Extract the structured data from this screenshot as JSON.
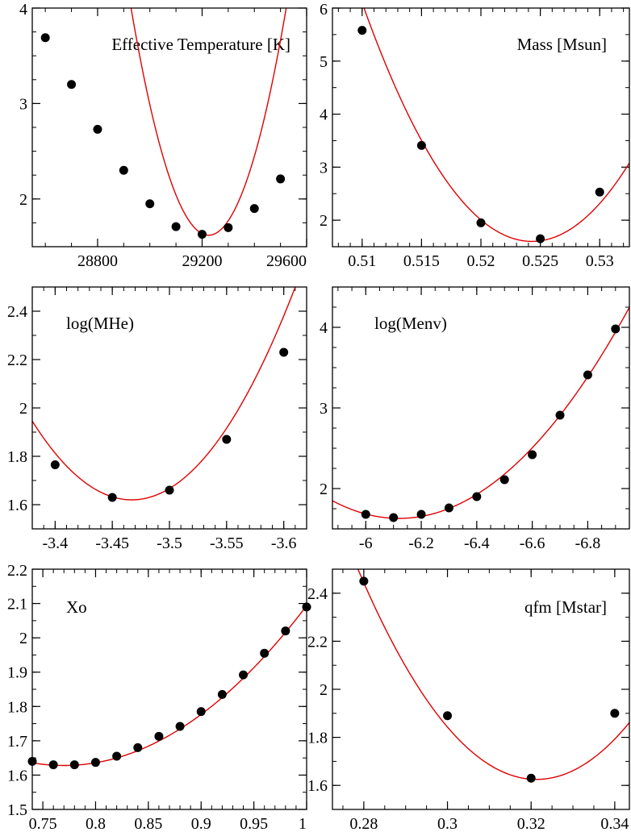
{
  "chart_data": [
    {
      "type": "scatter",
      "title": "Effective Temperature [K]",
      "xlim": [
        28550,
        29600
      ],
      "ylim": [
        1.5,
        4
      ],
      "xticks": [
        28800,
        29200,
        29600
      ],
      "xtick_labels": [
        "28800",
        "29200",
        "29600"
      ],
      "xminor": 100,
      "yticks": [
        2,
        3,
        4
      ],
      "ytick_labels": [
        "2",
        "3",
        "4"
      ],
      "yminor": 0.25,
      "x": [
        28600,
        28700,
        28800,
        28900,
        29000,
        29100,
        29200,
        29300,
        29400,
        29500
      ],
      "y": [
        3.69,
        3.2,
        2.73,
        2.3,
        1.95,
        1.71,
        1.63,
        1.7,
        1.9,
        2.21
      ],
      "fit": {
        "x0": 29225,
        "y0": 1.62,
        "a": 2.7e-05
      }
    },
    {
      "type": "scatter",
      "title": "Mass [Msun]",
      "xlim": [
        0.5075,
        0.5325
      ],
      "ylim": [
        1.5,
        6
      ],
      "xticks": [
        0.51,
        0.515,
        0.52,
        0.525,
        0.53
      ],
      "xtick_labels": [
        "0.51",
        "0.515",
        "0.52",
        "0.525",
        "0.53"
      ],
      "xminor": 0.001,
      "yticks": [
        2,
        3,
        4,
        5,
        6
      ],
      "ytick_labels": [
        "2",
        "3",
        "4",
        "5",
        "6"
      ],
      "yminor": 0.5,
      "x": [
        0.51,
        0.515,
        0.52,
        0.525,
        0.53
      ],
      "y": [
        5.58,
        3.41,
        1.95,
        1.65,
        2.53
      ],
      "fit": {
        "x0": 0.5243,
        "y0": 1.6,
        "a": 22000
      }
    },
    {
      "type": "scatter",
      "title": "log(MHe)",
      "xlim": [
        -3.38,
        -3.62
      ],
      "ylim": [
        1.5,
        2.5
      ],
      "xticks": [
        -3.4,
        -3.45,
        -3.5,
        -3.55,
        -3.6
      ],
      "xtick_labels": [
        "-3.4",
        "-3.45",
        "-3.5",
        "-3.55",
        "-3.6"
      ],
      "xminor": 0.01,
      "yticks": [
        1.6,
        1.8,
        2,
        2.2,
        2.4
      ],
      "ytick_labels": [
        "1.6",
        "1.8",
        "2",
        "2.2",
        "2.4"
      ],
      "yminor": 0.1,
      "x": [
        -3.4,
        -3.45,
        -3.5,
        -3.55,
        -3.6
      ],
      "y": [
        1.765,
        1.63,
        1.66,
        1.87,
        2.23
      ],
      "fit": {
        "x0": -3.467,
        "y0": 1.62,
        "a": 43
      }
    },
    {
      "type": "scatter",
      "title": "log(Menv)",
      "xlim": [
        -5.88,
        -6.95
      ],
      "ylim": [
        1.5,
        4.5
      ],
      "xticks": [
        -6,
        -6.2,
        -6.4,
        -6.6,
        -6.8
      ],
      "xtick_labels": [
        "-6",
        "-6.2",
        "-6.4",
        "-6.6",
        "-6.8"
      ],
      "xminor": 0.05,
      "yticks": [
        2,
        3,
        4
      ],
      "ytick_labels": [
        "2",
        "3",
        "4"
      ],
      "yminor": 0.25,
      "x": [
        -6.0,
        -6.1,
        -6.2,
        -6.3,
        -6.4,
        -6.5,
        -6.6,
        -6.7,
        -6.8,
        -6.9
      ],
      "y": [
        1.68,
        1.64,
        1.68,
        1.76,
        1.9,
        2.11,
        2.42,
        2.91,
        3.41,
        3.98
      ],
      "fit": {
        "x0": -6.12,
        "y0": 1.63,
        "a": 3.8
      }
    },
    {
      "type": "scatter",
      "title": "Xo",
      "xlim": [
        0.74,
        1.0
      ],
      "ylim": [
        1.5,
        2.2
      ],
      "xticks": [
        0.75,
        0.8,
        0.85,
        0.9,
        0.95,
        1
      ],
      "xtick_labels": [
        "0.75",
        "0.8",
        "0.85",
        "0.9",
        "0.95",
        "1"
      ],
      "xminor": 0.01,
      "yticks": [
        1.5,
        1.6,
        1.7,
        1.8,
        1.9,
        2,
        2.1,
        2.2
      ],
      "ytick_labels": [
        "1.5",
        "1.6",
        "1.7",
        "1.8",
        "1.9",
        "2",
        "2.1",
        "2.2"
      ],
      "yminor": 0.05,
      "x": [
        0.74,
        0.76,
        0.78,
        0.8,
        0.82,
        0.84,
        0.86,
        0.88,
        0.9,
        0.92,
        0.94,
        0.96,
        0.98,
        1.0
      ],
      "y": [
        1.64,
        1.63,
        1.63,
        1.637,
        1.655,
        1.68,
        1.713,
        1.742,
        1.785,
        1.835,
        1.892,
        1.955,
        2.02,
        2.09
      ],
      "fit": {
        "x0": 0.77,
        "y0": 1.628,
        "a": 8.8
      }
    },
    {
      "type": "scatter",
      "title": "qfm [Mstar]",
      "xlim": [
        0.2725,
        0.3435
      ],
      "ylim": [
        1.5,
        2.5
      ],
      "xticks": [
        0.28,
        0.3,
        0.32,
        0.34
      ],
      "xtick_labels": [
        "0.28",
        "0.3",
        "0.32",
        "0.34"
      ],
      "xminor": 0.005,
      "yticks": [
        1.6,
        1.8,
        2,
        2.2,
        2.4
      ],
      "ytick_labels": [
        "1.6",
        "1.8",
        "2",
        "2.2",
        "2.4"
      ],
      "yminor": 0.1,
      "x": [
        0.28,
        0.3,
        0.32,
        0.34
      ],
      "y": [
        2.45,
        1.89,
        1.63,
        1.9
      ],
      "fit": {
        "x0": 0.3213,
        "y0": 1.625,
        "a": 480
      }
    }
  ],
  "style": {
    "marker_color": "#000000",
    "fit_color": "#e00000",
    "axis_color": "#000000"
  }
}
